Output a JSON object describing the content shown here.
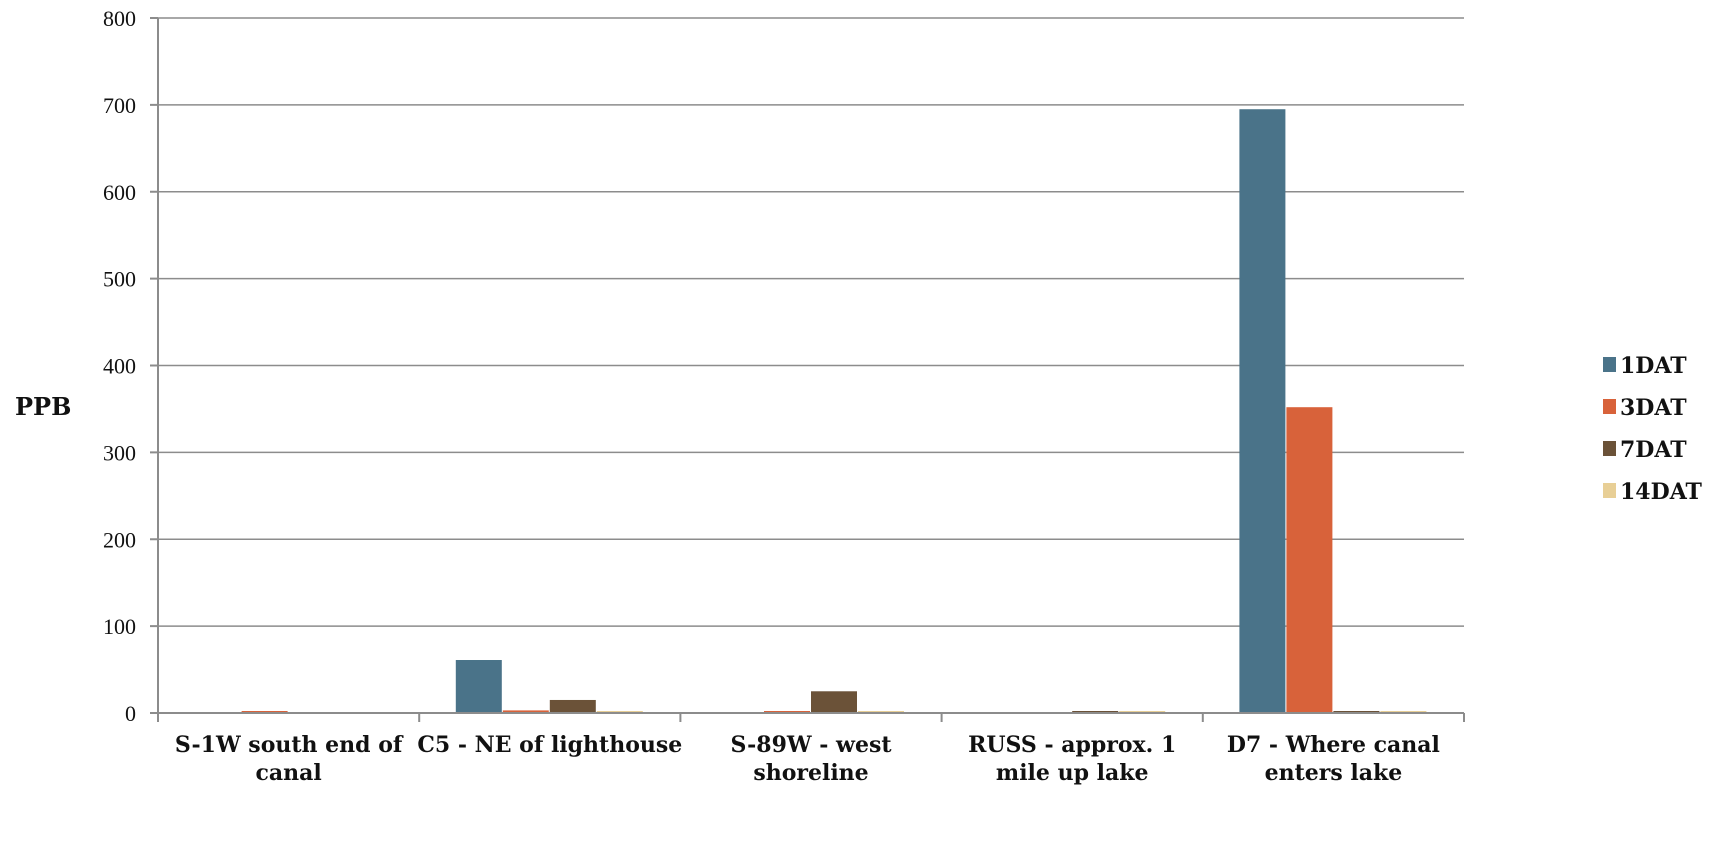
{
  "chart_data": {
    "type": "bar",
    "title": "",
    "xlabel": "",
    "ylabel": "PPB",
    "ylim": [
      0,
      800
    ],
    "yticks": [
      0,
      100,
      200,
      300,
      400,
      500,
      600,
      700,
      800
    ],
    "grid": true,
    "legend_position": "right",
    "categories": [
      [
        "S-1W south end of",
        "canal"
      ],
      [
        "C5 - NE of lighthouse"
      ],
      [
        "S-89W - west",
        "shoreline"
      ],
      [
        "RUSS - approx. 1",
        "mile up lake"
      ],
      [
        "D7 - Where canal",
        "enters lake"
      ]
    ],
    "series": [
      {
        "name": "1DAT",
        "color": "#4a7389",
        "values": [
          0,
          61,
          0,
          0,
          695
        ]
      },
      {
        "name": "3DAT",
        "color": "#d8623a",
        "values": [
          1,
          3,
          1,
          0,
          352
        ]
      },
      {
        "name": "7DAT",
        "color": "#6b5238",
        "values": [
          0,
          15,
          25,
          1,
          2
        ]
      },
      {
        "name": "14DAT",
        "color": "#e8cf96",
        "values": [
          0,
          1,
          1,
          1,
          1
        ]
      }
    ]
  }
}
